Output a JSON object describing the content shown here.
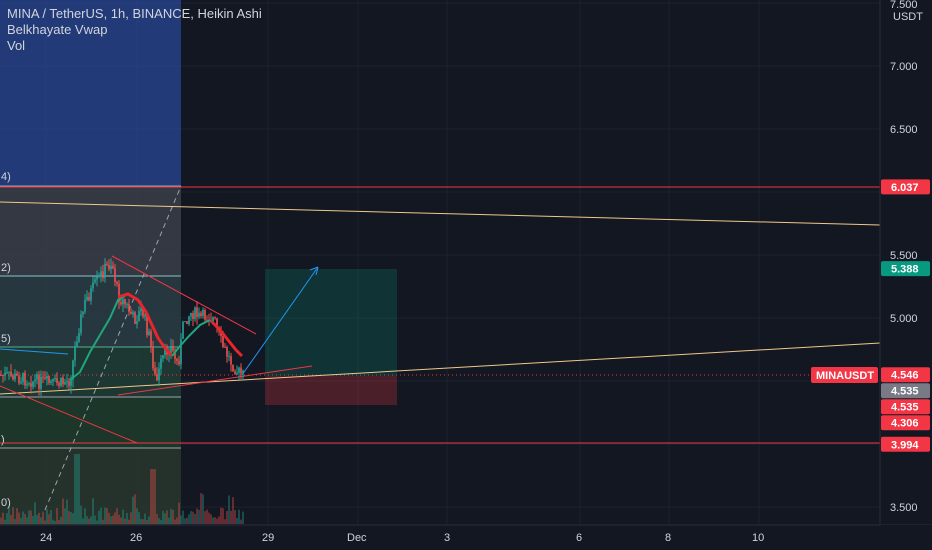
{
  "legend": {
    "symbol_line": "MINA / TetherUS, 1h, BINANCE, Heikin Ashi",
    "indicator_1": "Belkhayate Vwap",
    "indicator_2": "Vol"
  },
  "price_axis": {
    "currency": "USDT",
    "ticks": [
      "7.500",
      "7.000",
      "6.500",
      "5.500",
      "5.000",
      "3.500"
    ]
  },
  "time_axis": {
    "ticks": [
      "24",
      "26",
      "29",
      "Dec",
      "3",
      "6",
      "8",
      "10"
    ]
  },
  "price_tags": [
    {
      "label": "6.037",
      "price": 6.037,
      "color": "#f23645"
    },
    {
      "label": "5.388",
      "price": 5.388,
      "color": "#089981"
    },
    {
      "label": "4.546",
      "price": 4.546,
      "color": "#f23645"
    },
    {
      "label": "4.535",
      "price": 4.535,
      "color": "#787b86"
    },
    {
      "label": "4.535",
      "price": 4.535,
      "color": "#f23645"
    },
    {
      "label": "4.306",
      "price": 4.306,
      "color": "#f23645"
    },
    {
      "label": "3.994",
      "price": 3.994,
      "color": "#f23645"
    }
  ],
  "symbol_tag": "MINAUSDT",
  "current_price": 4.546,
  "levels": {
    "resistance": 6.037,
    "support": 3.994,
    "target": 5.388,
    "stop": 4.306,
    "entry": 4.535
  },
  "colors": {
    "background": "#131722",
    "up": "#26a69a",
    "down": "#ef5350",
    "red_line": "#f23645",
    "tan_line": "#f0c98a",
    "teal_tag": "#089981",
    "blue_zone": "#2a4796",
    "arrow": "#2196f3",
    "axis_text": "#d1d4dc"
  }
}
